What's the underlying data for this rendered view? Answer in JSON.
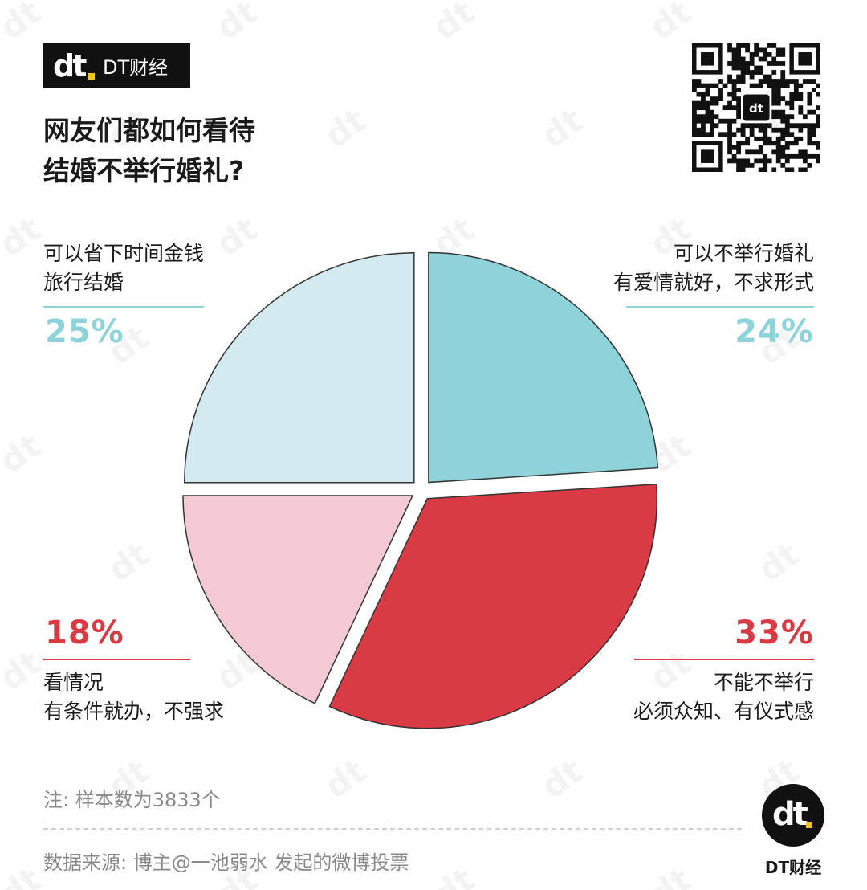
{
  "brand": {
    "name": "DT财经",
    "logo_text": "dt"
  },
  "title": {
    "line1": "网友们都如何看待",
    "line2": "结婚不举行婚礼?"
  },
  "chart_data": {
    "type": "pie",
    "total_percent": 100,
    "slices": [
      {
        "label_line1": "可以不举行婚礼",
        "label_line2": "有爱情就好，不求形式",
        "value": 24,
        "display": "24%",
        "color": "#8ed3d9",
        "text_color": "#8ed3d9"
      },
      {
        "label_line1": "不能不举行",
        "label_line2": "必须众知、有仪式感",
        "value": 33,
        "display": "33%",
        "color": "#d93a44",
        "text_color": "#d93a44"
      },
      {
        "label_line1": "看情况",
        "label_line2": "有条件就办，不强求",
        "value": 18,
        "display": "18%",
        "color": "#f4c9d6",
        "text_color": "#d93a44"
      },
      {
        "label_line1": "可以省下时间金钱",
        "label_line2": "旅行结婚",
        "value": 25,
        "display": "25%",
        "color": "#d3ebf0",
        "text_color": "#8ed3d9"
      }
    ]
  },
  "footer": {
    "note": "注: 样本数为3833个",
    "source": "数据来源: 博主@一池弱水 发起的微博投票"
  }
}
